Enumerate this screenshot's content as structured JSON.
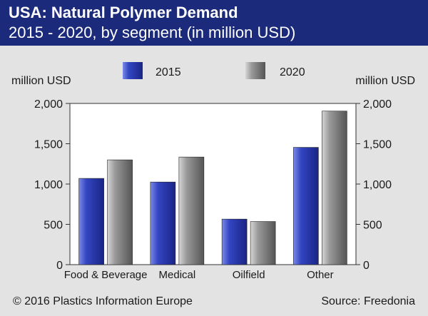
{
  "header": {
    "title": "USA: Natural Polymer Demand",
    "subtitle": "2015 - 2020, by segment (in million USD)"
  },
  "footer": {
    "copyright": "© 2016 Plastics Information Europe",
    "source": "Source: Freedonia"
  },
  "colors": {
    "header_bg": "#1b2a7a",
    "panel_bg": "#e3e3e3",
    "plot_bg": "#ffffff",
    "series_2015": "#2d3fb5",
    "series_2020": "#8c8c8c"
  },
  "chart_data": {
    "type": "bar",
    "ylabel_left": "million USD",
    "ylabel_right": "million USD",
    "ylim": [
      0,
      2000
    ],
    "yticks": [
      0,
      500,
      1000,
      1500,
      2000
    ],
    "ytick_labels": [
      "0",
      "500",
      "1,000",
      "1,500",
      "2,000"
    ],
    "grid": false,
    "legend_position": "top-center",
    "categories": [
      "Food & Beverage",
      "Medical",
      "Oilfield",
      "Other"
    ],
    "series": [
      {
        "name": "2015",
        "values": [
          1070,
          1025,
          565,
          1455
        ]
      },
      {
        "name": "2020",
        "values": [
          1300,
          1335,
          535,
          1905
        ]
      }
    ]
  }
}
